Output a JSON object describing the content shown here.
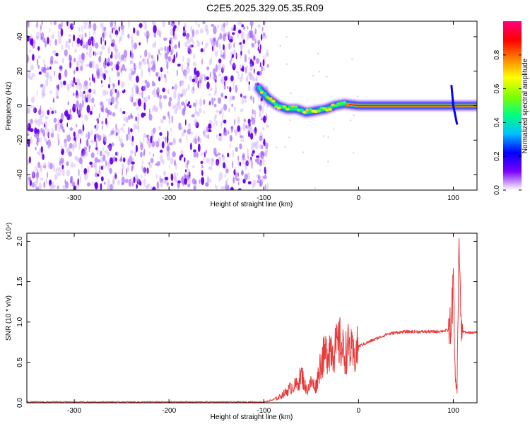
{
  "figure_title": "C2E5.2025.329.05.35.R09",
  "colors": {
    "series": "#e83a3a",
    "frame": "#000000"
  },
  "chart_data": [
    {
      "type": "heatmap",
      "xlabel": "Height of straight line (km)",
      "ylabel": "Frequency (Hz)",
      "xlim": [
        -350,
        125
      ],
      "ylim": [
        -49,
        49
      ],
      "xticks": [
        -300,
        -200,
        -100,
        0,
        100
      ],
      "yticks": [
        -40,
        -20,
        0,
        20,
        40
      ],
      "ytick_labels": [
        "-40",
        "-20",
        "0",
        "20",
        "40"
      ],
      "colorbar": {
        "label": "Normalized spectral amplitude",
        "range": [
          0,
          1
        ],
        "ticks": [
          0.0,
          0.2,
          0.4,
          0.6,
          0.8
        ],
        "tick_labels": [
          "0.0",
          "0.2",
          "0.4",
          "0.6",
          "0.8"
        ],
        "colormap": [
          "#ffffff",
          "#7a00ff",
          "#0000ff",
          "#00c0ff",
          "#00ff80",
          "#80ff00",
          "#ffff00",
          "#ff8000",
          "#ff0000",
          "#ff0080"
        ]
      },
      "noise_region": {
        "x": [
          -350,
          -100
        ],
        "amplitude": 0.25
      },
      "ridge": [
        {
          "x": -105,
          "y": 10
        },
        {
          "x": -95,
          "y": 4
        },
        {
          "x": -85,
          "y": 0
        },
        {
          "x": -75,
          "y": -2
        },
        {
          "x": -65,
          "y": -2
        },
        {
          "x": -55,
          "y": -4
        },
        {
          "x": -45,
          "y": -3
        },
        {
          "x": -35,
          "y": -2
        },
        {
          "x": -25,
          "y": 0
        },
        {
          "x": -15,
          "y": 1
        },
        {
          "x": 0,
          "y": 0
        },
        {
          "x": 50,
          "y": 0
        },
        {
          "x": 100,
          "y": 0
        },
        {
          "x": 125,
          "y": 0
        }
      ]
    },
    {
      "type": "line",
      "xlabel": "Height of straight line (km)",
      "ylabel": "SNR (10 * v/v)",
      "yscale_label": "(x10⁴)",
      "xlim": [
        -350,
        125
      ],
      "ylim": [
        0,
        2.1
      ],
      "xticks": [
        -300,
        -200,
        -100,
        0,
        100
      ],
      "yticks": [
        0.0,
        0.5,
        1.0,
        1.5,
        2.0
      ],
      "ytick_labels": [
        "0.0",
        "0.5",
        "1.0",
        "1.5",
        "2.0"
      ],
      "series": [
        {
          "x": [
            -350,
            -300,
            -250,
            -200,
            -150,
            -100,
            -95,
            -90,
            -85,
            -80,
            -75,
            -70,
            -65,
            -60,
            -55,
            -50,
            -45,
            -40,
            -35,
            -30,
            -25,
            -20,
            -15,
            -10,
            -5,
            0,
            10,
            20,
            30,
            40,
            50,
            60,
            70,
            80,
            90,
            95,
            98,
            100,
            102,
            104,
            106,
            108,
            110,
            115,
            120,
            125
          ],
          "y": [
            0.01,
            0.01,
            0.01,
            0.01,
            0.01,
            0.01,
            0.02,
            0.04,
            0.06,
            0.1,
            0.15,
            0.2,
            0.22,
            0.35,
            0.15,
            0.25,
            0.2,
            0.5,
            0.6,
            0.7,
            0.65,
            0.75,
            0.6,
            0.7,
            0.55,
            0.7,
            0.75,
            0.8,
            0.85,
            0.87,
            0.88,
            0.88,
            0.88,
            0.88,
            0.89,
            0.9,
            1.0,
            1.5,
            0.3,
            0.15,
            2.1,
            0.9,
            0.88,
            0.87,
            0.87,
            0.87
          ]
        }
      ]
    }
  ]
}
